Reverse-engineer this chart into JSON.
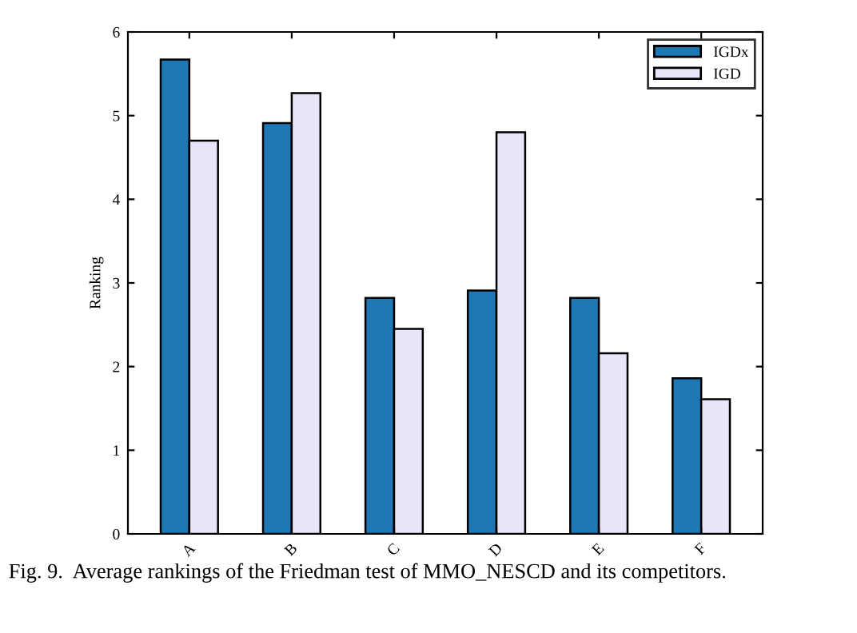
{
  "chart_data": {
    "type": "bar",
    "ylabel": "Ranking",
    "categories": [
      "A",
      "B",
      "C",
      "D",
      "E",
      "F"
    ],
    "series": [
      {
        "name": "IGDx",
        "color": "#1f77b4",
        "values": [
          5.67,
          4.91,
          2.82,
          2.91,
          2.82,
          1.86
        ]
      },
      {
        "name": "IGD",
        "color": "#e6e6f8",
        "values": [
          4.7,
          5.27,
          2.45,
          4.8,
          2.16,
          1.61
        ]
      }
    ],
    "ylim": [
      0,
      6
    ],
    "yticks": [
      0,
      1,
      2,
      3,
      4,
      5,
      6
    ],
    "grid": false,
    "legend": "top right",
    "annotations": [
      "Fig. 9.  Average rankings of the Friedman test of MMO_NESCD and its competitors."
    ]
  }
}
